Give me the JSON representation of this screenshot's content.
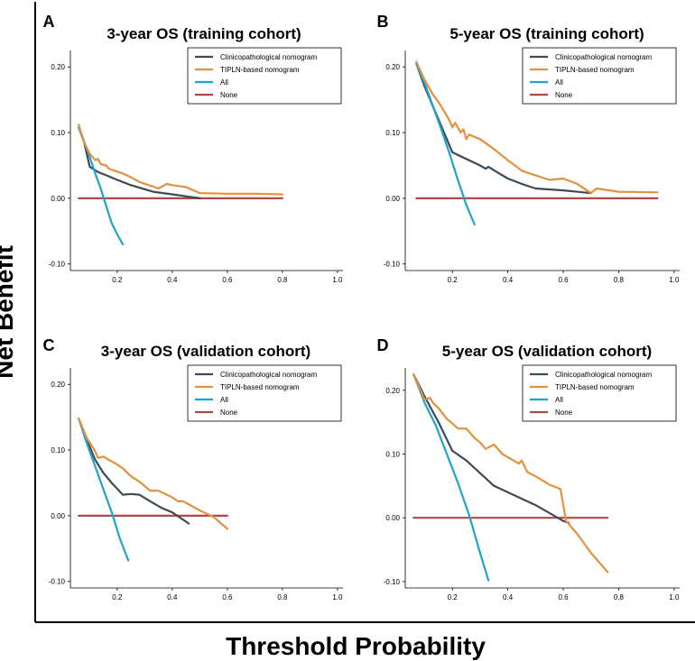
{
  "figure": {
    "xlabel": "Threshold Probability",
    "ylabel": "Net Benefit"
  },
  "colors": {
    "Clinicopathological nomogram": "#3d4b56",
    "TIPLN-based nomogram": "#e1913f",
    "All": "#1ea3cc",
    "None": "#b04a48"
  },
  "chart_data": [
    {
      "type": "line",
      "letter": "A",
      "title": "3-year OS (training cohort)",
      "xticks": [
        0.2,
        0.4,
        0.6,
        0.8,
        1.0
      ],
      "yticks": [
        -0.1,
        0.0,
        0.1,
        0.2
      ],
      "xlim": [
        0.03,
        1.02
      ],
      "ylim": [
        -0.11,
        0.225
      ],
      "series": [
        {
          "name": "Clinicopathological nomogram",
          "x": [
            0.06,
            0.08,
            0.1,
            0.13,
            0.16,
            0.2,
            0.25,
            0.33,
            0.4,
            0.45,
            0.5
          ],
          "y": [
            0.108,
            0.085,
            0.048,
            0.04,
            0.035,
            0.028,
            0.02,
            0.01,
            0.006,
            0.003,
            0.0
          ]
        },
        {
          "name": "TIPLN-based nomogram",
          "x": [
            0.06,
            0.08,
            0.1,
            0.12,
            0.13,
            0.14,
            0.16,
            0.17,
            0.19,
            0.22,
            0.25,
            0.28,
            0.33,
            0.35,
            0.38,
            0.4,
            0.45,
            0.5,
            0.6,
            0.7,
            0.8
          ],
          "y": [
            0.112,
            0.085,
            0.068,
            0.058,
            0.06,
            0.052,
            0.05,
            0.045,
            0.042,
            0.038,
            0.032,
            0.025,
            0.018,
            0.015,
            0.022,
            0.02,
            0.017,
            0.008,
            0.007,
            0.007,
            0.006
          ]
        },
        {
          "name": "All",
          "x": [
            0.06,
            0.08,
            0.1,
            0.12,
            0.14,
            0.16,
            0.18,
            0.2,
            0.22
          ],
          "y": [
            0.108,
            0.086,
            0.063,
            0.038,
            0.015,
            -0.012,
            -0.038,
            -0.055,
            -0.07
          ]
        },
        {
          "name": "None",
          "x": [
            0.06,
            0.8
          ],
          "y": [
            0.0,
            0.0
          ]
        }
      ]
    },
    {
      "type": "line",
      "letter": "B",
      "title": "5-year OS (training cohort)",
      "xticks": [
        0.2,
        0.4,
        0.6,
        0.8,
        1.0
      ],
      "yticks": [
        -0.1,
        0.0,
        0.1,
        0.2
      ],
      "xlim": [
        0.03,
        1.02
      ],
      "ylim": [
        -0.11,
        0.225
      ],
      "series": [
        {
          "name": "Clinicopathological nomogram",
          "x": [
            0.07,
            0.1,
            0.13,
            0.16,
            0.2,
            0.25,
            0.3,
            0.32,
            0.33,
            0.36,
            0.4,
            0.45,
            0.5,
            0.6,
            0.7
          ],
          "y": [
            0.205,
            0.17,
            0.14,
            0.11,
            0.07,
            0.06,
            0.05,
            0.045,
            0.048,
            0.04,
            0.03,
            0.022,
            0.015,
            0.012,
            0.008
          ]
        },
        {
          "name": "TIPLN-based nomogram",
          "x": [
            0.07,
            0.1,
            0.13,
            0.16,
            0.19,
            0.2,
            0.21,
            0.23,
            0.24,
            0.25,
            0.26,
            0.3,
            0.35,
            0.4,
            0.45,
            0.5,
            0.55,
            0.6,
            0.65,
            0.7,
            0.72,
            0.8,
            0.94
          ],
          "y": [
            0.208,
            0.18,
            0.158,
            0.14,
            0.118,
            0.108,
            0.115,
            0.1,
            0.105,
            0.09,
            0.097,
            0.09,
            0.075,
            0.058,
            0.042,
            0.035,
            0.028,
            0.03,
            0.022,
            0.008,
            0.015,
            0.01,
            0.009
          ]
        },
        {
          "name": "All",
          "x": [
            0.07,
            0.1,
            0.13,
            0.16,
            0.19,
            0.22,
            0.25,
            0.28
          ],
          "y": [
            0.205,
            0.175,
            0.14,
            0.105,
            0.068,
            0.028,
            -0.01,
            -0.04
          ]
        },
        {
          "name": "None",
          "x": [
            0.07,
            0.94
          ],
          "y": [
            0.0,
            0.0
          ]
        }
      ]
    },
    {
      "type": "line",
      "letter": "C",
      "title": "3-year OS (validation cohort)",
      "xticks": [
        0.2,
        0.4,
        0.6,
        0.8,
        1.0
      ],
      "yticks": [
        -0.1,
        0.0,
        0.1,
        0.2
      ],
      "xlim": [
        0.03,
        1.02
      ],
      "ylim": [
        -0.11,
        0.225
      ],
      "series": [
        {
          "name": "Clinicopathological nomogram",
          "x": [
            0.06,
            0.09,
            0.12,
            0.15,
            0.18,
            0.22,
            0.25,
            0.28,
            0.32,
            0.36,
            0.4,
            0.46
          ],
          "y": [
            0.148,
            0.115,
            0.085,
            0.065,
            0.05,
            0.032,
            0.033,
            0.032,
            0.022,
            0.012,
            0.005,
            -0.012
          ]
        },
        {
          "name": "TIPLN-based nomogram",
          "x": [
            0.06,
            0.09,
            0.12,
            0.13,
            0.15,
            0.17,
            0.2,
            0.22,
            0.25,
            0.28,
            0.3,
            0.32,
            0.35,
            0.38,
            0.4,
            0.42,
            0.44,
            0.47,
            0.5,
            0.55,
            0.6
          ],
          "y": [
            0.148,
            0.118,
            0.098,
            0.088,
            0.09,
            0.085,
            0.078,
            0.072,
            0.06,
            0.052,
            0.045,
            0.038,
            0.038,
            0.032,
            0.028,
            0.022,
            0.022,
            0.015,
            0.008,
            -0.002,
            -0.02
          ]
        },
        {
          "name": "All",
          "x": [
            0.06,
            0.09,
            0.12,
            0.15,
            0.18,
            0.21,
            0.24
          ],
          "y": [
            0.148,
            0.11,
            0.075,
            0.04,
            0.005,
            -0.035,
            -0.068
          ]
        },
        {
          "name": "None",
          "x": [
            0.06,
            0.6
          ],
          "y": [
            0.0,
            0.0
          ]
        }
      ]
    },
    {
      "type": "line",
      "letter": "D",
      "title": "5-year OS (validation cohort)",
      "xticks": [
        0.2,
        0.4,
        0.6,
        0.8,
        1.0
      ],
      "yticks": [
        -0.1,
        0.0,
        0.1,
        0.2
      ],
      "xlim": [
        0.03,
        1.02
      ],
      "ylim": [
        -0.11,
        0.235
      ],
      "series": [
        {
          "name": "Clinicopathological nomogram",
          "x": [
            0.06,
            0.1,
            0.15,
            0.2,
            0.25,
            0.3,
            0.35,
            0.4,
            0.5,
            0.6,
            0.62
          ],
          "y": [
            0.225,
            0.19,
            0.15,
            0.105,
            0.09,
            0.07,
            0.05,
            0.04,
            0.02,
            -0.005,
            -0.008
          ]
        },
        {
          "name": "TIPLN-based nomogram",
          "x": [
            0.06,
            0.1,
            0.12,
            0.13,
            0.15,
            0.18,
            0.2,
            0.22,
            0.25,
            0.28,
            0.3,
            0.32,
            0.35,
            0.38,
            0.4,
            0.44,
            0.45,
            0.47,
            0.5,
            0.55,
            0.59,
            0.61,
            0.65,
            0.7,
            0.76
          ],
          "y": [
            0.225,
            0.185,
            0.188,
            0.18,
            0.172,
            0.155,
            0.148,
            0.14,
            0.14,
            0.125,
            0.118,
            0.108,
            0.115,
            0.1,
            0.095,
            0.085,
            0.09,
            0.072,
            0.065,
            0.052,
            0.045,
            -0.005,
            -0.025,
            -0.055,
            -0.085
          ]
        },
        {
          "name": "All",
          "x": [
            0.06,
            0.1,
            0.14,
            0.18,
            0.22,
            0.26,
            0.3,
            0.33
          ],
          "y": [
            0.225,
            0.18,
            0.145,
            0.1,
            0.055,
            0.005,
            -0.055,
            -0.098
          ]
        },
        {
          "name": "None",
          "x": [
            0.06,
            0.76
          ],
          "y": [
            0.0,
            0.0
          ]
        }
      ]
    }
  ]
}
